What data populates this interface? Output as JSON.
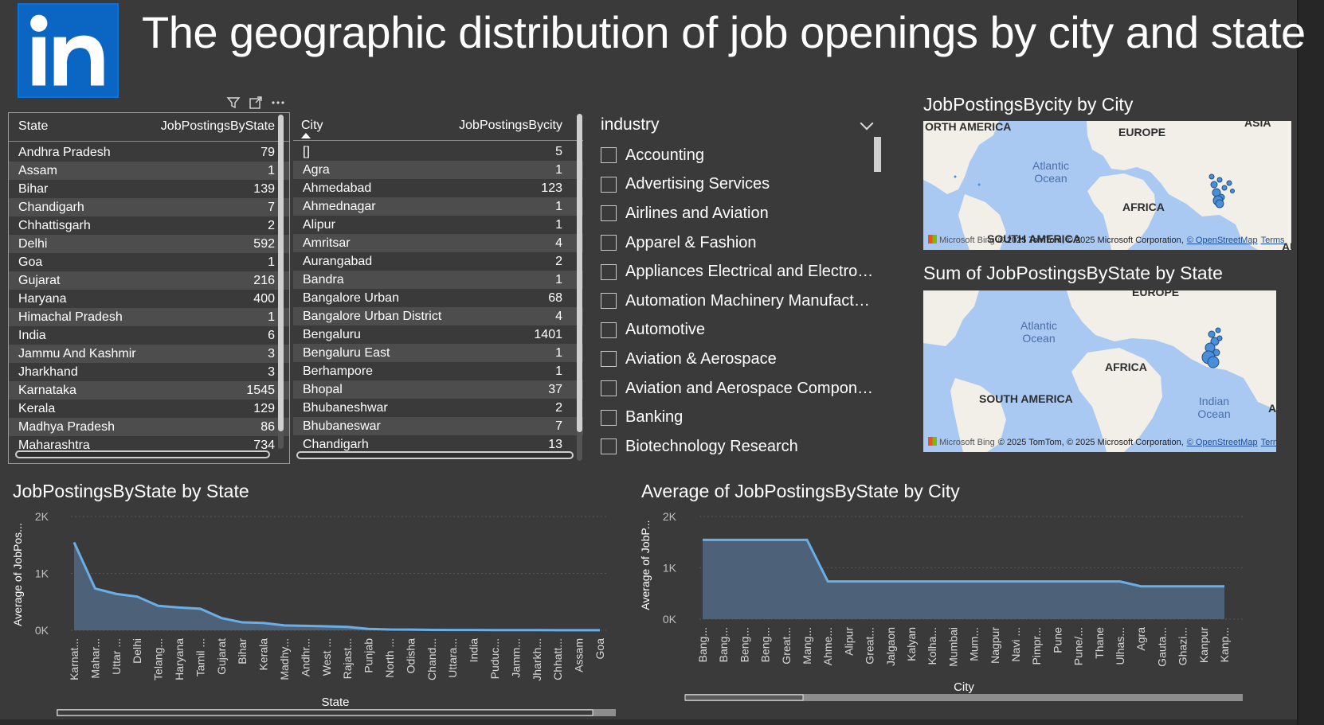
{
  "page": {
    "title": "The geographic distribution of job openings by city and state"
  },
  "logo": {
    "text": "in",
    "color": "#0a66c2"
  },
  "visual_header": {
    "icons": [
      "filter-icon",
      "focus-mode-icon",
      "more-options-icon"
    ]
  },
  "state_table": {
    "headers": [
      "State",
      "JobPostingsByState"
    ],
    "rows": [
      [
        "Andhra Pradesh",
        "79"
      ],
      [
        "Assam",
        "1"
      ],
      [
        "Bihar",
        "139"
      ],
      [
        "Chandigarh",
        "7"
      ],
      [
        "Chhattisgarh",
        "2"
      ],
      [
        "Delhi",
        "592"
      ],
      [
        "Goa",
        "1"
      ],
      [
        "Gujarat",
        "216"
      ],
      [
        "Haryana",
        "400"
      ],
      [
        "Himachal Pradesh",
        "1"
      ],
      [
        "India",
        "6"
      ],
      [
        "Jammu And Kashmir",
        "3"
      ],
      [
        "Jharkhand",
        "3"
      ],
      [
        "Karnataka",
        "1545"
      ],
      [
        "Kerala",
        "129"
      ],
      [
        "Madhya Pradesh",
        "86"
      ],
      [
        "Maharashtra",
        "734"
      ]
    ]
  },
  "city_table": {
    "headers": [
      "City",
      "JobPostingsBycity"
    ],
    "rows": [
      [
        "[]",
        "5"
      ],
      [
        "Agra",
        "1"
      ],
      [
        "Ahmedabad",
        "123"
      ],
      [
        "Ahmednagar",
        "1"
      ],
      [
        "Alipur",
        "1"
      ],
      [
        "Amritsar",
        "4"
      ],
      [
        "Aurangabad",
        "2"
      ],
      [
        "Bandra",
        "1"
      ],
      [
        "Bangalore Urban",
        "68"
      ],
      [
        "Bangalore Urban District",
        "4"
      ],
      [
        "Bengaluru",
        "1401"
      ],
      [
        "Bengaluru East",
        "1"
      ],
      [
        "Berhampore",
        "1"
      ],
      [
        "Bhopal",
        "37"
      ],
      [
        "Bhubaneshwar",
        "2"
      ],
      [
        "Bhubaneswar",
        "7"
      ],
      [
        "Chandigarh",
        "13"
      ]
    ]
  },
  "industry_slicer": {
    "title": "industry",
    "items": [
      "Accounting",
      "Advertising Services",
      "Airlines and Aviation",
      "Apparel & Fashion",
      "Appliances Electrical and Electronics Manufacturing",
      "Automation Machinery Manufacturing",
      "Automotive",
      "Aviation & Aerospace",
      "Aviation and Aerospace Component Manufacturing",
      "Banking",
      "Biotechnology Research"
    ]
  },
  "map_city": {
    "title": "JobPostingsBycity by City",
    "labels": {
      "north_america": "ORTH AMERICA",
      "europe": "EUROPE",
      "asia": "ASIA",
      "africa": "AFRICA",
      "south_america": "SOUTH AMERICA",
      "atlantic": "Atlantic Ocean",
      "au": "AU"
    },
    "credit": "© 2025 TomTom, © 2025 Microsoft Corporation,",
    "credit_link": "© OpenStreetMap",
    "terms": "Terms",
    "ms": "Microsoft Bing"
  },
  "map_state": {
    "title": "Sum of JobPostingsByState by State",
    "labels": {
      "europe": "EUROPE",
      "africa": "AFRICA",
      "south_america": "SOUTH AMERICA",
      "atlantic": "Atlantic Ocean",
      "indian": "Indian Ocean",
      "a": "A"
    },
    "credit": "© 2025 TomTom, © 2025 Microsoft Corporation,",
    "credit_link": "© OpenStreetMap",
    "terms": "Terms",
    "ms": "Microsoft Bing"
  },
  "colors": {
    "area_fill": "#4d6279",
    "area_line": "#6aaee8",
    "background": "#3a3a3a",
    "map_water": "#a9c9f2",
    "map_land": "#f1efe8"
  },
  "chart_data": [
    {
      "type": "area",
      "title": "JobPostingsByState by State",
      "xlabel": "State",
      "ylabel": "Average of JobPos...",
      "yticks": [
        "0K",
        "1K",
        "2K"
      ],
      "ylim": [
        0,
        2000
      ],
      "categories": [
        "Karnat...",
        "Mahar...",
        "Uttar ...",
        "Delhi",
        "Telang...",
        "Haryana",
        "Tamil ...",
        "Gujarat",
        "Bihar",
        "Kerala",
        "Madhy...",
        "Andhr...",
        "West ...",
        "Rajast...",
        "Punjab",
        "North ...",
        "Odisha",
        "Chand...",
        "Uttara...",
        "India",
        "Puduc...",
        "Jamm...",
        "Jharkh...",
        "Chhatt...",
        "Assam",
        "Goa"
      ],
      "values": [
        1545,
        734,
        640,
        592,
        430,
        400,
        380,
        216,
        139,
        129,
        86,
        79,
        70,
        60,
        25,
        14,
        12,
        7,
        6,
        6,
        4,
        3,
        3,
        2,
        1,
        1
      ]
    },
    {
      "type": "area",
      "title": "Average of JobPostingsByState by City",
      "xlabel": "City",
      "ylabel": "Average of JobP...",
      "yticks": [
        "0K",
        "1K",
        "2K"
      ],
      "ylim": [
        0,
        2000
      ],
      "categories": [
        "Bang...",
        "Bang...",
        "Beng...",
        "Beng...",
        "Great...",
        "Mang...",
        "Ahme...",
        "Alipur",
        "Great...",
        "Jalgaon",
        "Kalyan",
        "Kolha...",
        "Mumbai",
        "Mum...",
        "Nagpur",
        "Navi ...",
        "Pimpr...",
        "Pune",
        "Pune/...",
        "Thane",
        "Ulhas...",
        "Agra",
        "Gauta...",
        "Ghazi...",
        "Kanpur",
        "Kanp..."
      ],
      "values": [
        1545,
        1545,
        1545,
        1545,
        1545,
        1545,
        734,
        734,
        734,
        734,
        734,
        734,
        734,
        734,
        734,
        734,
        734,
        734,
        734,
        734,
        734,
        640,
        640,
        640,
        640,
        640
      ]
    }
  ]
}
